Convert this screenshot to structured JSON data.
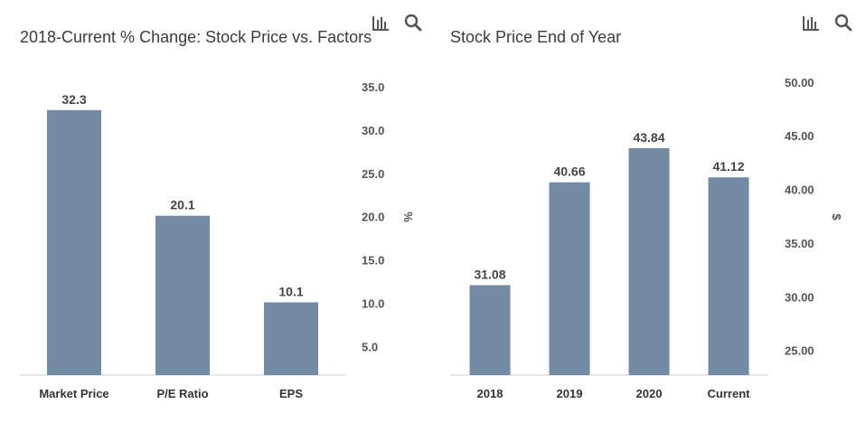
{
  "toolbar": {
    "chart_icon": "bar-chart-icon",
    "search_icon": "magnifier-icon"
  },
  "chart_data": [
    {
      "type": "bar",
      "title": "2018-Current % Change: Stock Price vs. Factors",
      "categories": [
        "Market Price",
        "P/E Ratio",
        "EPS"
      ],
      "values": [
        32.3,
        20.1,
        10.1
      ],
      "value_labels": [
        "32.3",
        "20.1",
        "10.1"
      ],
      "ylabel": "%",
      "y_ticks": [
        "5.0",
        "10.0",
        "15.0",
        "20.0",
        "25.0",
        "30.0",
        "35.0"
      ],
      "ylim": [
        1.7,
        37.5
      ],
      "bar_color": "#738aa5",
      "axis_position": "right",
      "grid": false,
      "legend": "none"
    },
    {
      "type": "bar",
      "title": "Stock Price End of Year",
      "categories": [
        "2018",
        "2019",
        "2020",
        "Current"
      ],
      "values": [
        31.08,
        40.66,
        43.84,
        41.12
      ],
      "value_labels": [
        "31.08",
        "40.66",
        "43.84",
        "41.12"
      ],
      "ylabel": "$",
      "y_ticks": [
        "25.00",
        "30.00",
        "35.00",
        "40.00",
        "45.00",
        "50.00"
      ],
      "ylim": [
        22.7,
        52.0
      ],
      "bar_color": "#738aa5",
      "axis_position": "right",
      "grid": false,
      "legend": "none"
    }
  ]
}
